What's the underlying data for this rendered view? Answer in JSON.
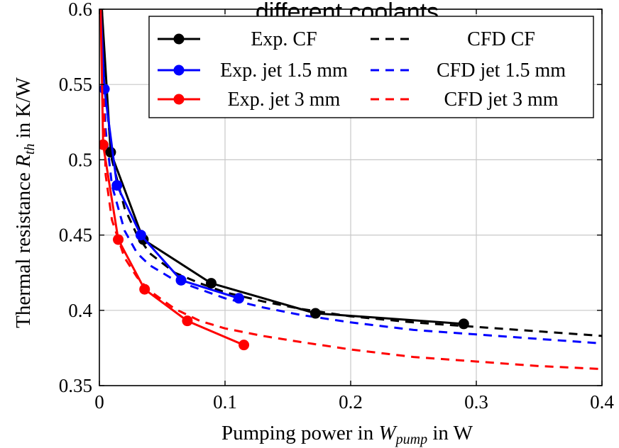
{
  "chart_data": {
    "type": "line",
    "title": "different coolants",
    "xlabel_text": "Pumping power in ",
    "xlabel_var": "W",
    "xlabel_sub": "pump",
    "xlabel_unit": " in W",
    "ylabel_text": "Thermal resistance ",
    "ylabel_var": "R",
    "ylabel_sub": "th",
    "ylabel_unit": " in K/W",
    "xlim": [
      0,
      0.4
    ],
    "ylim": [
      0.35,
      0.6
    ],
    "xticks": [
      "0",
      "0.1",
      "0.2",
      "0.3",
      "0.4"
    ],
    "xtick_values": [
      0,
      0.1,
      0.2,
      0.3,
      0.4
    ],
    "yticks": [
      "0.35",
      "0.4",
      "0.45",
      "0.5",
      "0.55",
      "0.6"
    ],
    "ytick_values": [
      0.35,
      0.4,
      0.45,
      0.5,
      0.55,
      0.6
    ],
    "grid": true,
    "legend_position": "top-right",
    "legend_columns": 2,
    "series": [
      {
        "name": "Exp. CF",
        "color": "#000000",
        "style": "solid-marker",
        "x": [
          0.002,
          0.009,
          0.035,
          0.089,
          0.172,
          0.29
        ],
        "y": [
          0.6,
          0.505,
          0.447,
          0.418,
          0.398,
          0.391
        ]
      },
      {
        "name": "CFD CF",
        "color": "#000000",
        "style": "dashed",
        "x": [
          0.002,
          0.005,
          0.01,
          0.02,
          0.03,
          0.04,
          0.06,
          0.08,
          0.1,
          0.13,
          0.16,
          0.2,
          0.25,
          0.3,
          0.35,
          0.4
        ],
        "y": [
          0.6,
          0.545,
          0.5,
          0.468,
          0.45,
          0.438,
          0.425,
          0.418,
          0.412,
          0.406,
          0.401,
          0.396,
          0.392,
          0.389,
          0.386,
          0.383
        ]
      },
      {
        "name": "Exp. jet 1.5 mm",
        "color": "#0000ff",
        "style": "solid-marker",
        "x": [
          0.001,
          0.004,
          0.014,
          0.033,
          0.065,
          0.111
        ],
        "y": [
          0.6,
          0.547,
          0.483,
          0.45,
          0.42,
          0.408
        ]
      },
      {
        "name": "CFD jet 1.5 mm",
        "color": "#0000ff",
        "style": "dashed",
        "x": [
          0.001,
          0.005,
          0.01,
          0.02,
          0.03,
          0.04,
          0.06,
          0.08,
          0.1,
          0.13,
          0.16,
          0.2,
          0.25,
          0.3,
          0.35,
          0.4
        ],
        "y": [
          0.6,
          0.52,
          0.483,
          0.453,
          0.438,
          0.43,
          0.42,
          0.414,
          0.408,
          0.402,
          0.397,
          0.392,
          0.387,
          0.384,
          0.381,
          0.378
        ]
      },
      {
        "name": "Exp. jet 3 mm",
        "color": "#ff0000",
        "style": "solid-marker",
        "x": [
          0.001,
          0.003,
          0.015,
          0.036,
          0.07,
          0.115
        ],
        "y": [
          0.6,
          0.51,
          0.447,
          0.414,
          0.393,
          0.377
        ]
      },
      {
        "name": "CFD jet 3 mm",
        "color": "#ff0000",
        "style": "dashed",
        "x": [
          0.0015,
          0.005,
          0.01,
          0.02,
          0.03,
          0.04,
          0.06,
          0.08,
          0.1,
          0.13,
          0.16,
          0.2,
          0.25,
          0.3,
          0.35,
          0.4
        ],
        "y": [
          0.6,
          0.49,
          0.46,
          0.435,
          0.422,
          0.413,
          0.401,
          0.393,
          0.388,
          0.383,
          0.379,
          0.374,
          0.369,
          0.366,
          0.363,
          0.361
        ]
      }
    ]
  }
}
